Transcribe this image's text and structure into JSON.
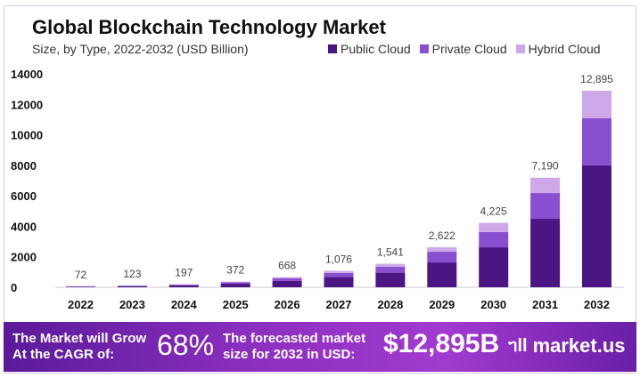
{
  "chart_data": {
    "type": "bar",
    "stacked": true,
    "title": "Global Blockchain Technology Market",
    "subtitle": "Size, by Type, 2022-2032 (USD Billion)",
    "categories": [
      "2022",
      "2023",
      "2024",
      "2025",
      "2026",
      "2027",
      "2028",
      "2029",
      "2030",
      "2031",
      "2032"
    ],
    "totals": [
      "72",
      "123",
      "197",
      "372",
      "668",
      "1,076",
      "1,541",
      "2,622",
      "4,225",
      "7,190",
      "12,895"
    ],
    "series": [
      {
        "name": "Public Cloud",
        "color": "#4b1584",
        "values": [
          45,
          76,
          122,
          231,
          414,
          667,
          955,
          1630,
          2620,
          4490,
          8000
        ]
      },
      {
        "name": "Private Cloud",
        "color": "#8a4fd0",
        "values": [
          18,
          31,
          49,
          93,
          167,
          269,
          385,
          700,
          1000,
          1690,
          3100
        ]
      },
      {
        "name": "Hybrid Cloud",
        "color": "#cfa8ea",
        "values": [
          9,
          16,
          26,
          48,
          87,
          140,
          201,
          292,
          605,
          1010,
          1795
        ]
      }
    ],
    "yticks": [
      0,
      2000,
      4000,
      6000,
      8000,
      10000,
      12000,
      14000
    ],
    "ylim": [
      0,
      14000
    ],
    "grid": false,
    "legend": "top-right"
  },
  "banner": {
    "cagr_text_1": "The Market will Grow",
    "cagr_text_2": "At the CAGR of:",
    "cagr_value": "68%",
    "forecast_text_1": "The forecasted market",
    "forecast_text_2": "size for 2032 in USD:",
    "forecast_value": "$12,895B",
    "logo_text": "market.us"
  }
}
